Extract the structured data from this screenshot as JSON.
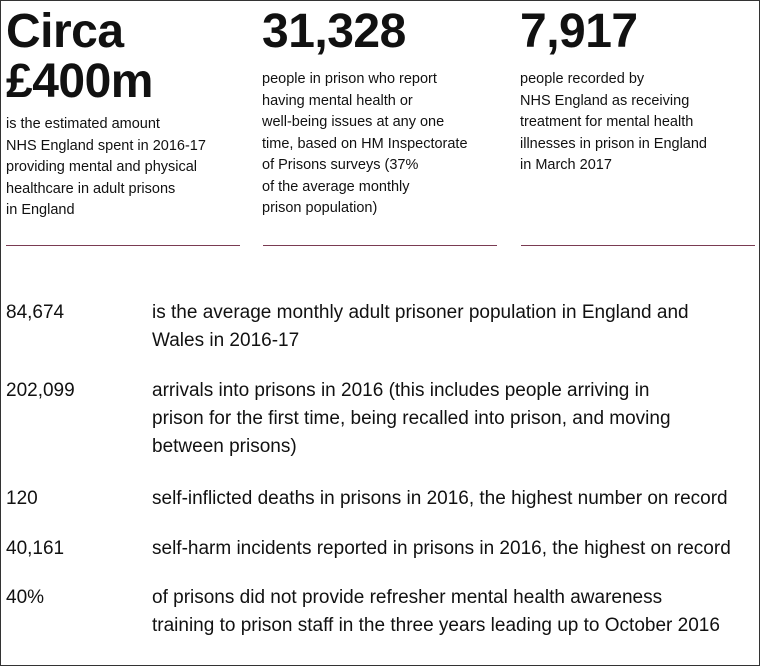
{
  "cards": [
    {
      "big": "Circa\n£400m",
      "desc": "is the estimated amount\nNHS England spent in 2016-17\nproviding mental and physical\nhealthcare in adult prisons\nin England"
    },
    {
      "big": "31,328",
      "desc": "people in prison who report\nhaving mental health or\nwell-being issues at any one\ntime, based on HM Inspectorate\nof Prisons surveys (37%\nof the average monthly\nprison population)"
    },
    {
      "big": "7,917",
      "desc": "people recorded by\nNHS England as receiving\ntreatment for mental health\nillnesses in prison in England\nin March 2017"
    }
  ],
  "stats": [
    {
      "number": "84,674",
      "text": "is the average monthly adult prisoner population in England and\nWales in 2016-17"
    },
    {
      "number": "202,099",
      "text": "arrivals into prisons in 2016 (this includes people arriving in\nprison for the first time, being recalled into prison, and moving\nbetween prisons)"
    },
    {
      "number": "120",
      "text": "self-inflicted deaths in prisons in 2016, the highest number on record"
    },
    {
      "number": "40,161",
      "text": "self-harm incidents reported in prisons in 2016, the highest on record"
    },
    {
      "number": "40%",
      "text": "of prisons did not provide refresher mental health awareness\ntraining to prison staff in the three years leading up to October 2016"
    }
  ],
  "colors": {
    "rule": "#7a3b52",
    "text": "#111111",
    "border": "#333333"
  }
}
